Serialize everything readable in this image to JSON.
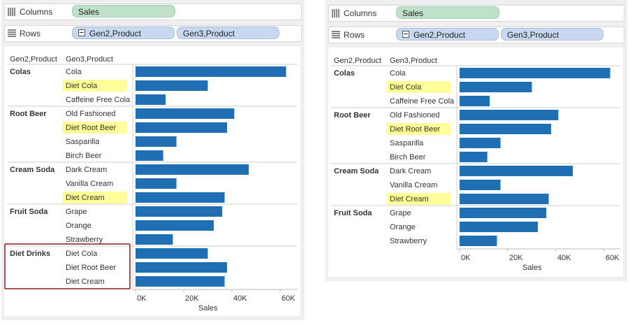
{
  "shelves": {
    "columns_label": "Columns",
    "rows_label": "Rows",
    "columns_pills": [
      "Sales"
    ],
    "rows_pills": [
      "Gen2,Product",
      "Gen3,Product"
    ]
  },
  "colors": {
    "bar": "#1f6fb2",
    "highlight": "#ffff99",
    "selection_border": "#8b1a1a",
    "pill_green": "#bfe1c9",
    "pill_blue": "#c8d8f0"
  },
  "views": [
    {
      "header_gen2": "Gen2,Product",
      "header_gen3": "Gen3,Product",
      "axis_title": "Sales",
      "axis_ticks": [
        "0K",
        "20K",
        "40K",
        "60K"
      ],
      "groups": [
        {
          "name": "Colas",
          "items": [
            {
              "label": "Cola",
              "value": 62500,
              "highlight": false
            },
            {
              "label": "Diet Cola",
              "value": 30000,
              "highlight": true
            },
            {
              "label": "Caffeine Free Cola",
              "value": 12500,
              "highlight": false
            }
          ]
        },
        {
          "name": "Root Beer",
          "items": [
            {
              "label": "Old Fashioned",
              "value": 41000,
              "highlight": false
            },
            {
              "label": "Diet Root Beer",
              "value": 38000,
              "highlight": true
            },
            {
              "label": "Sasparilla",
              "value": 17000,
              "highlight": false
            },
            {
              "label": "Birch Beer",
              "value": 11500,
              "highlight": false
            }
          ]
        },
        {
          "name": "Cream Soda",
          "items": [
            {
              "label": "Dark Cream",
              "value": 47000,
              "highlight": false
            },
            {
              "label": "Vanilla Cream",
              "value": 17000,
              "highlight": false
            },
            {
              "label": "Diet Cream",
              "value": 37000,
              "highlight": true
            }
          ]
        },
        {
          "name": "Fruit Soda",
          "items": [
            {
              "label": "Grape",
              "value": 36000,
              "highlight": false
            },
            {
              "label": "Orange",
              "value": 32500,
              "highlight": false
            },
            {
              "label": "Strawberry",
              "value": 15500,
              "highlight": false
            }
          ]
        },
        {
          "name": "Diet Drinks",
          "selected": true,
          "items": [
            {
              "label": "Diet Cola",
              "value": 30000,
              "highlight": false
            },
            {
              "label": "Diet Root Beer",
              "value": 38000,
              "highlight": false
            },
            {
              "label": "Diet Cream",
              "value": 37000,
              "highlight": false
            }
          ]
        }
      ]
    },
    {
      "header_gen2": "Gen2,Product",
      "header_gen3": "Gen3,Product",
      "axis_title": "Sales",
      "axis_ticks": [
        "0K",
        "20K",
        "40K",
        "60K"
      ],
      "groups": [
        {
          "name": "Colas",
          "items": [
            {
              "label": "Cola",
              "value": 62500,
              "highlight": false
            },
            {
              "label": "Diet Cola",
              "value": 30000,
              "highlight": true
            },
            {
              "label": "Caffeine Free Cola",
              "value": 12500,
              "highlight": false
            }
          ]
        },
        {
          "name": "Root Beer",
          "items": [
            {
              "label": "Old Fashioned",
              "value": 41000,
              "highlight": false
            },
            {
              "label": "Diet Root Beer",
              "value": 38000,
              "highlight": true
            },
            {
              "label": "Sasparilla",
              "value": 17000,
              "highlight": false
            },
            {
              "label": "Birch Beer",
              "value": 11500,
              "highlight": false
            }
          ]
        },
        {
          "name": "Cream Soda",
          "items": [
            {
              "label": "Dark Cream",
              "value": 47000,
              "highlight": false
            },
            {
              "label": "Vanilla Cream",
              "value": 17000,
              "highlight": false
            },
            {
              "label": "Diet Cream",
              "value": 37000,
              "highlight": true
            }
          ]
        },
        {
          "name": "Fruit Soda",
          "items": [
            {
              "label": "Grape",
              "value": 36000,
              "highlight": false
            },
            {
              "label": "Orange",
              "value": 32500,
              "highlight": false
            },
            {
              "label": "Strawberry",
              "value": 15500,
              "highlight": false
            }
          ]
        }
      ]
    }
  ],
  "chart_data": [
    {
      "type": "bar",
      "title": "",
      "xlabel": "Sales",
      "xlim": [
        0,
        65000
      ],
      "orientation": "horizontal",
      "categories": [
        "Colas / Cola",
        "Colas / Diet Cola",
        "Colas / Caffeine Free Cola",
        "Root Beer / Old Fashioned",
        "Root Beer / Diet Root Beer",
        "Root Beer / Sasparilla",
        "Root Beer / Birch Beer",
        "Cream Soda / Dark Cream",
        "Cream Soda / Vanilla Cream",
        "Cream Soda / Diet Cream",
        "Fruit Soda / Grape",
        "Fruit Soda / Orange",
        "Fruit Soda / Strawberry",
        "Diet Drinks / Diet Cola",
        "Diet Drinks / Diet Root Beer",
        "Diet Drinks / Diet Cream"
      ],
      "values": [
        62500,
        30000,
        12500,
        41000,
        38000,
        17000,
        11500,
        47000,
        17000,
        37000,
        36000,
        32500,
        15500,
        30000,
        38000,
        37000
      ]
    },
    {
      "type": "bar",
      "title": "",
      "xlabel": "Sales",
      "xlim": [
        0,
        65000
      ],
      "orientation": "horizontal",
      "categories": [
        "Colas / Cola",
        "Colas / Diet Cola",
        "Colas / Caffeine Free Cola",
        "Root Beer / Old Fashioned",
        "Root Beer / Diet Root Beer",
        "Root Beer / Sasparilla",
        "Root Beer / Birch Beer",
        "Cream Soda / Dark Cream",
        "Cream Soda / Vanilla Cream",
        "Cream Soda / Diet Cream",
        "Fruit Soda / Grape",
        "Fruit Soda / Orange",
        "Fruit Soda / Strawberry"
      ],
      "values": [
        62500,
        30000,
        12500,
        41000,
        38000,
        17000,
        11500,
        47000,
        17000,
        37000,
        36000,
        32500,
        15500
      ]
    }
  ]
}
